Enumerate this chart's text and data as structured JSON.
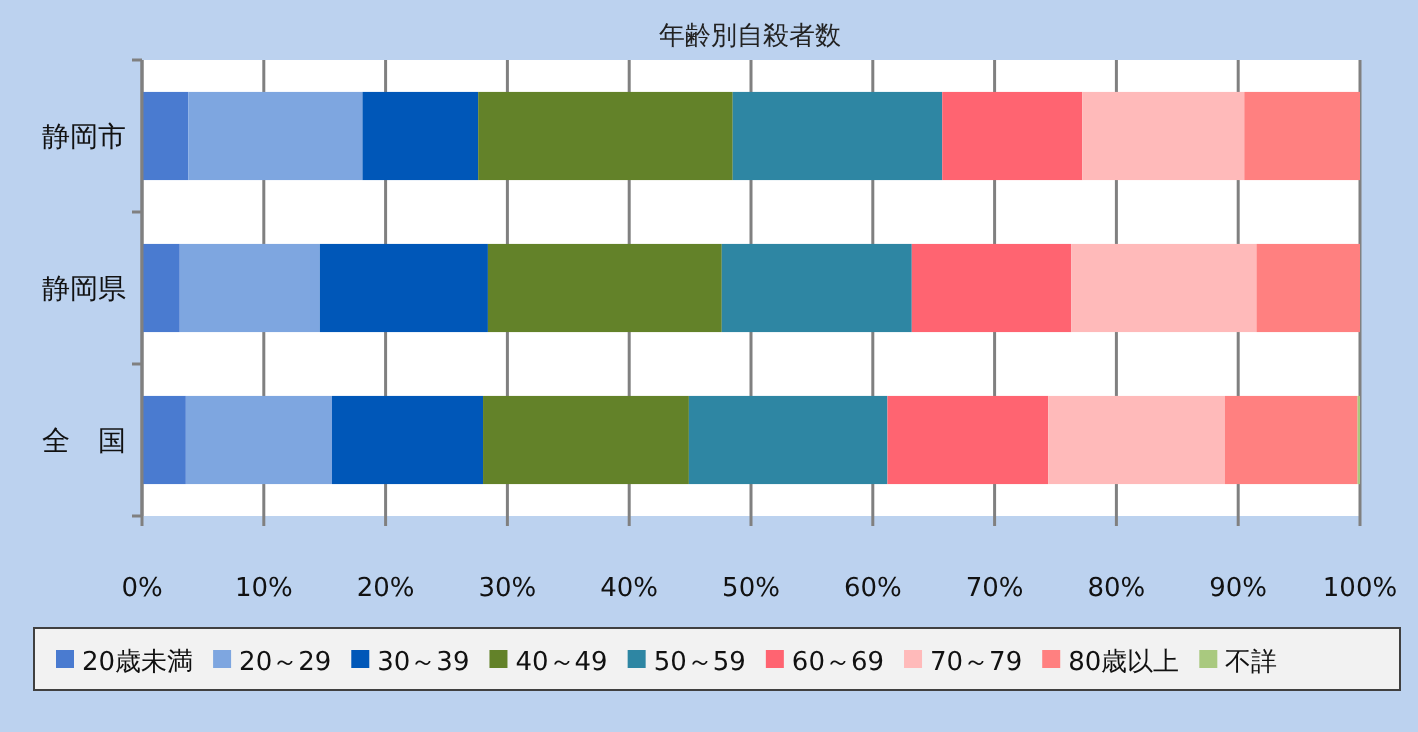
{
  "chart_data": {
    "type": "bar",
    "orientation": "horizontal",
    "stacked": true,
    "title": "年齢別自殺者数",
    "categories": [
      "静岡市",
      "静岡県",
      "全　国"
    ],
    "series": [
      {
        "name": "20歳未満",
        "color": "#4a7bd0",
        "values": [
          3.8,
          3.1,
          3.6
        ]
      },
      {
        "name": "20～29",
        "color": "#7ea6e0",
        "values": [
          14.3,
          11.5,
          12.0
        ]
      },
      {
        "name": "30～39",
        "color": "#0057b8",
        "values": [
          9.5,
          13.8,
          12.4
        ]
      },
      {
        "name": "40～49",
        "color": "#638229",
        "values": [
          20.9,
          19.2,
          16.9
        ]
      },
      {
        "name": "50～59",
        "color": "#2e86a3",
        "values": [
          17.2,
          15.6,
          16.3
        ]
      },
      {
        "name": "60～69",
        "color": "#ff6471",
        "values": [
          11.5,
          13.1,
          13.2
        ]
      },
      {
        "name": "70～79",
        "color": "#ffbaba",
        "values": [
          13.3,
          15.2,
          14.5
        ]
      },
      {
        "name": "80歳以上",
        "color": "#ff8080",
        "values": [
          9.5,
          8.5,
          10.9
        ]
      },
      {
        "name": "不詳",
        "color": "#a9c97f",
        "values": [
          0,
          0,
          0.2
        ]
      }
    ],
    "xlim": [
      0,
      100
    ],
    "xticks": [
      {
        "value": 0,
        "label": "0%"
      },
      {
        "value": 10,
        "label": "10%"
      },
      {
        "value": 20,
        "label": "20%"
      },
      {
        "value": 30,
        "label": "30%"
      },
      {
        "value": 40,
        "label": "40%"
      },
      {
        "value": 50,
        "label": "50%"
      },
      {
        "value": 60,
        "label": "60%"
      },
      {
        "value": 70,
        "label": "70%"
      },
      {
        "value": 80,
        "label": "80%"
      },
      {
        "value": 90,
        "label": "90%"
      },
      {
        "value": 100,
        "label": "100%"
      }
    ],
    "grid": "x",
    "legend": "bottom"
  }
}
